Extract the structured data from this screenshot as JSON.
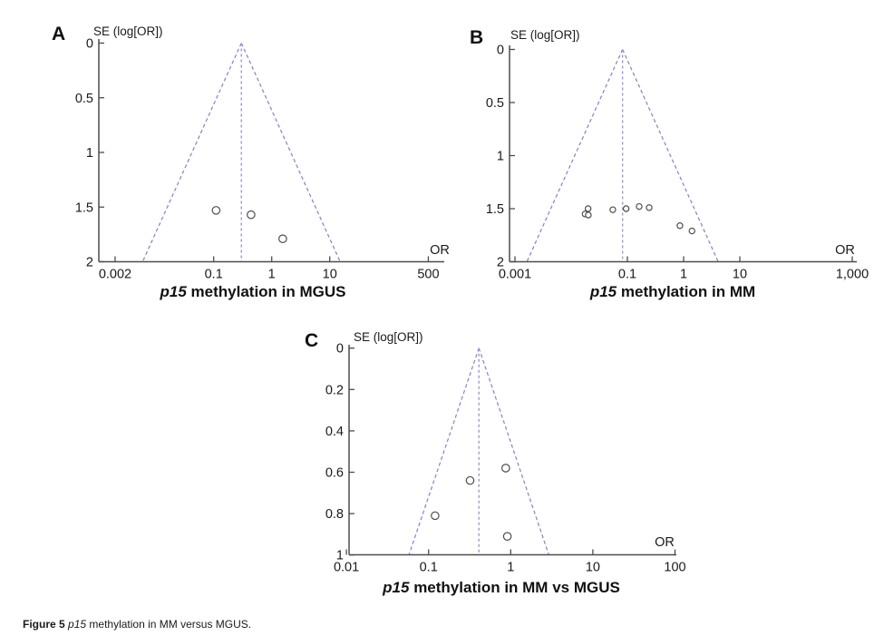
{
  "colors": {
    "funnel_line": "#8282c8",
    "center_line": "#9a9ad2",
    "axis": "#4d4d4d",
    "point_stroke": "#4d4d4d",
    "point_fill": "#ffffff",
    "text": "#1a1a1a"
  },
  "figure": {
    "caption": {
      "label": "Figure 5",
      "gene": "p15",
      "text": "methylation in MM versus MGUS."
    }
  },
  "chart_data": [
    {
      "panel": "A",
      "type": "scatter",
      "subtype": "funnel-plot",
      "y_axis_label": "SE (log[OR])",
      "x_axis_label": "OR",
      "title_italic": "p15",
      "title_rest": "methylation in MGUS",
      "x_scale": "log",
      "ylim": [
        0,
        2
      ],
      "center_or": 0.3,
      "funnel_ci": 1.96,
      "x_ticks": [
        {
          "v": 0.002,
          "label": "0.002"
        },
        {
          "v": 0.1,
          "label": "0.1"
        },
        {
          "v": 1,
          "label": "1"
        },
        {
          "v": 10,
          "label": "10"
        },
        {
          "v": 500,
          "label": "500"
        }
      ],
      "y_ticks": [
        {
          "v": 0,
          "label": "0"
        },
        {
          "v": 0.5,
          "label": "0.5"
        },
        {
          "v": 1,
          "label": "1"
        },
        {
          "v": 1.5,
          "label": "1.5"
        },
        {
          "v": 2,
          "label": "2"
        }
      ],
      "points": [
        {
          "or": 0.11,
          "se": 1.53
        },
        {
          "or": 0.44,
          "se": 1.57
        },
        {
          "or": 1.55,
          "se": 1.79
        }
      ]
    },
    {
      "panel": "B",
      "type": "scatter",
      "subtype": "funnel-plot",
      "y_axis_label": "SE (log[OR])",
      "x_axis_label": "OR",
      "title_italic": "p15",
      "title_rest": "methylation in MM",
      "x_scale": "log",
      "ylim": [
        0,
        2
      ],
      "center_or": 0.082,
      "funnel_ci": 1.96,
      "x_ticks": [
        {
          "v": 0.001,
          "label": "0.001"
        },
        {
          "v": 0.1,
          "label": "0.1"
        },
        {
          "v": 1,
          "label": "1"
        },
        {
          "v": 10,
          "label": "10"
        },
        {
          "v": 1000,
          "label": "1,000"
        }
      ],
      "y_ticks": [
        {
          "v": 0,
          "label": "0"
        },
        {
          "v": 0.5,
          "label": "0.5"
        },
        {
          "v": 1,
          "label": "1"
        },
        {
          "v": 1.5,
          "label": "1.5"
        },
        {
          "v": 2,
          "label": "2"
        }
      ],
      "points": [
        {
          "or": 0.02,
          "se": 1.5
        },
        {
          "or": 0.0177,
          "se": 1.55
        },
        {
          "or": 0.0202,
          "se": 1.56
        },
        {
          "or": 0.055,
          "se": 1.51
        },
        {
          "or": 0.095,
          "se": 1.5
        },
        {
          "or": 0.162,
          "se": 1.48
        },
        {
          "or": 0.244,
          "se": 1.49
        },
        {
          "or": 0.86,
          "se": 1.66
        },
        {
          "or": 1.41,
          "se": 1.71
        }
      ]
    },
    {
      "panel": "C",
      "type": "scatter",
      "subtype": "funnel-plot",
      "y_axis_label": "SE (log[OR])",
      "x_axis_label": "OR",
      "title_italic": "p15",
      "title_rest": "methylation in MM vs MGUS",
      "x_scale": "log",
      "ylim": [
        0,
        1
      ],
      "center_or": 0.41,
      "funnel_ci": 1.96,
      "x_ticks": [
        {
          "v": 0.01,
          "label": "0.01"
        },
        {
          "v": 0.1,
          "label": "0.1"
        },
        {
          "v": 1,
          "label": "1"
        },
        {
          "v": 10,
          "label": "10"
        },
        {
          "v": 100,
          "label": "100"
        }
      ],
      "y_ticks": [
        {
          "v": 0,
          "label": "0"
        },
        {
          "v": 0.2,
          "label": "0.2"
        },
        {
          "v": 0.4,
          "label": "0.4"
        },
        {
          "v": 0.6,
          "label": "0.6"
        },
        {
          "v": 0.8,
          "label": "0.8"
        },
        {
          "v": 1,
          "label": "1"
        }
      ],
      "points": [
        {
          "or": 0.87,
          "se": 0.58
        },
        {
          "or": 0.32,
          "se": 0.64
        },
        {
          "or": 0.12,
          "se": 0.81
        },
        {
          "or": 0.91,
          "se": 0.91
        }
      ]
    }
  ]
}
